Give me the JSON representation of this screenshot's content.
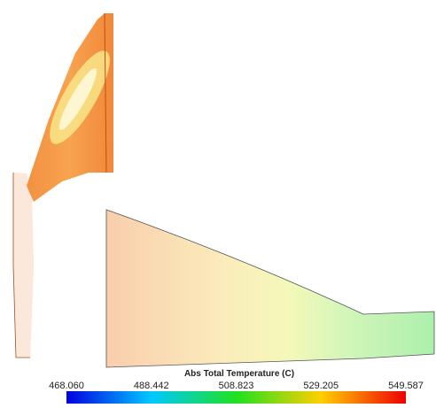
{
  "colorbar": {
    "title": "Abs Total Temperature (C)",
    "ticks": [
      {
        "value": 468.06,
        "label": "468.060"
      },
      {
        "value": 488.442,
        "label": "488.442"
      },
      {
        "value": 508.823,
        "label": "508.823"
      },
      {
        "value": 529.205,
        "label": "529.205"
      },
      {
        "value": 549.587,
        "label": "549.587"
      }
    ]
  }
}
